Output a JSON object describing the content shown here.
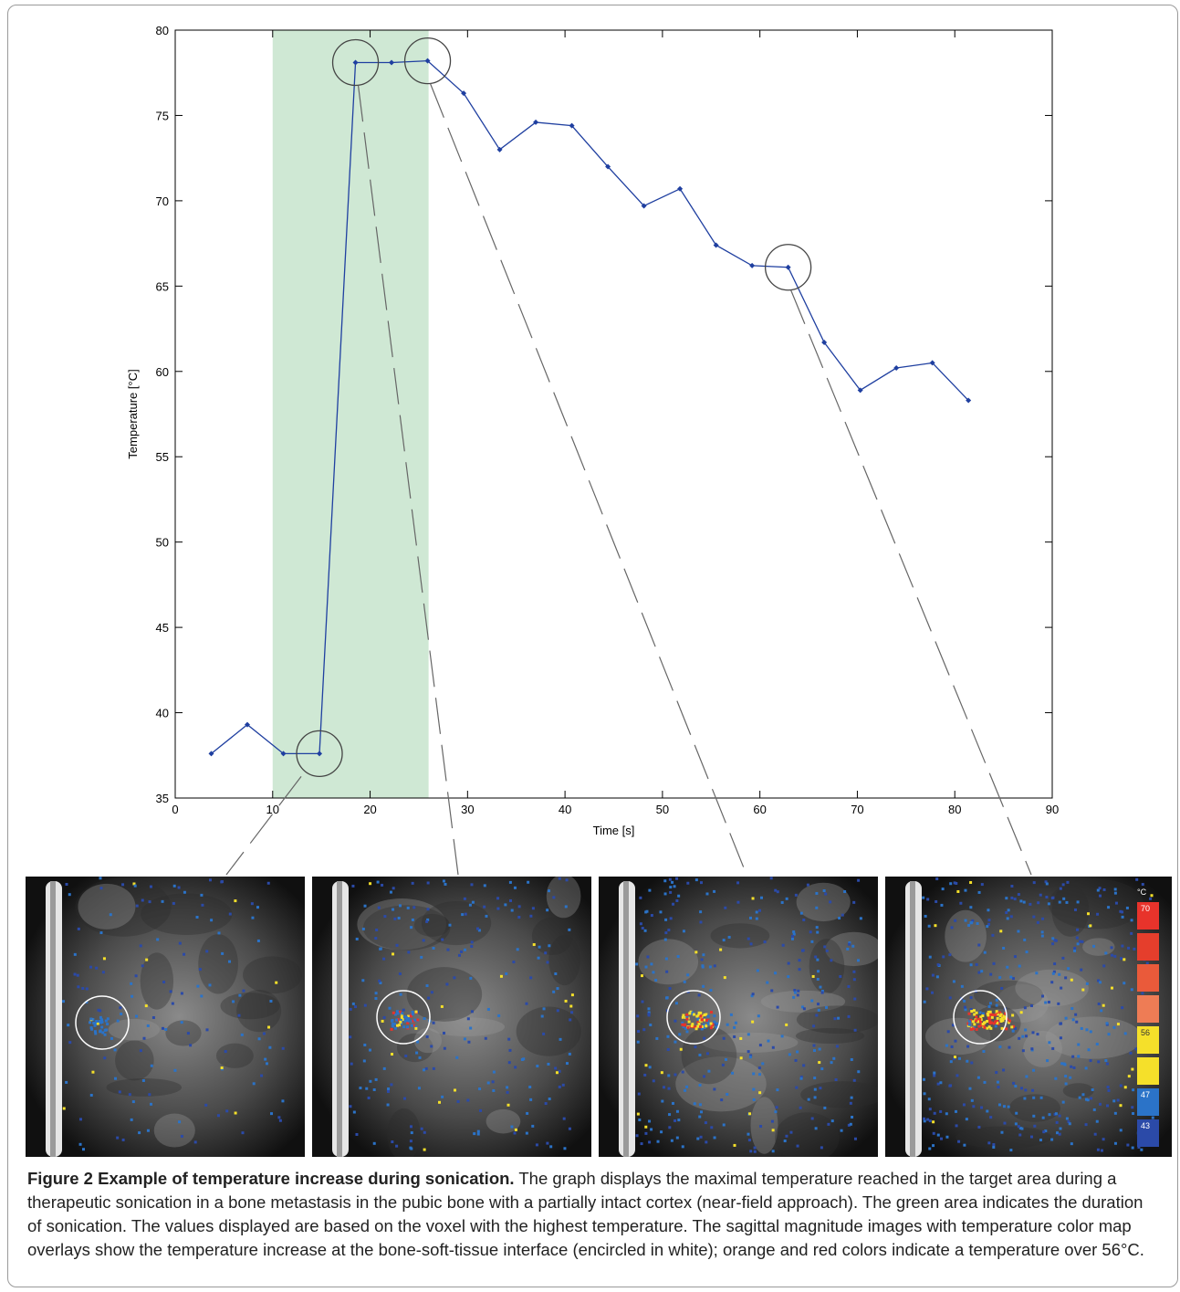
{
  "chart_data": {
    "type": "line",
    "xlabel": "Time [s]",
    "ylabel": "Temperature [°C]",
    "xlim": [
      0,
      90
    ],
    "ylim": [
      35,
      80
    ],
    "xticks": [
      0,
      10,
      20,
      30,
      40,
      50,
      60,
      70,
      80,
      90
    ],
    "yticks": [
      35,
      40,
      45,
      50,
      55,
      60,
      65,
      70,
      75,
      80
    ],
    "grid": false,
    "line_color": "#1f3fa0",
    "shaded_region": {
      "x": [
        10,
        26
      ],
      "color": "#cfe8d4"
    },
    "series": [
      {
        "x": [
          3.7,
          7.4,
          11.1,
          14.8,
          18.5,
          22.2,
          25.9,
          29.6,
          33.3,
          37.0,
          40.7,
          44.4,
          48.1,
          51.8,
          55.5,
          59.2,
          62.9,
          66.6,
          70.3,
          74.0,
          77.7,
          81.4
        ],
        "y": [
          37.6,
          39.3,
          37.6,
          37.6,
          78.1,
          78.1,
          78.2,
          76.3,
          73.0,
          74.6,
          74.4,
          72.0,
          69.7,
          70.7,
          67.4,
          66.2,
          66.1,
          61.7,
          58.9,
          60.2,
          60.5,
          58.3
        ]
      }
    ],
    "highlighted_points": [
      {
        "x": 14.8,
        "y": 37.6
      },
      {
        "x": 18.5,
        "y": 78.1
      },
      {
        "x": 25.9,
        "y": 78.2
      },
      {
        "x": 62.9,
        "y": 66.1
      }
    ]
  },
  "color_scale": {
    "unit": "°C",
    "colors": [
      "#e8332b",
      "#e53e2c",
      "#ea5a3a",
      "#ee7c55",
      "#f5e02a",
      "#f5e02a",
      "#2b73c8",
      "#2b4aa8"
    ],
    "labels": [
      {
        "index": 0,
        "text": "70"
      },
      {
        "index": 4,
        "text": "56"
      },
      {
        "index": 6,
        "text": "47"
      },
      {
        "index": 7,
        "text": "43"
      }
    ]
  },
  "caption": {
    "title": "Figure 2 Example of temperature increase during sonication.",
    "text": " The graph displays the maximal temperature reached in the target area during a therapeutic sonication in a bone metastasis in the pubic bone with a partially intact cortex (near-field approach). The green area indicates the duration of sonication. The values displayed are based on the voxel with the highest temperature. The sagittal magnitude images with temperature color map overlays show the temperature increase at the bone-soft-tissue interface (encircled in white); orange and red colors indicate a temperature over 56°C."
  }
}
